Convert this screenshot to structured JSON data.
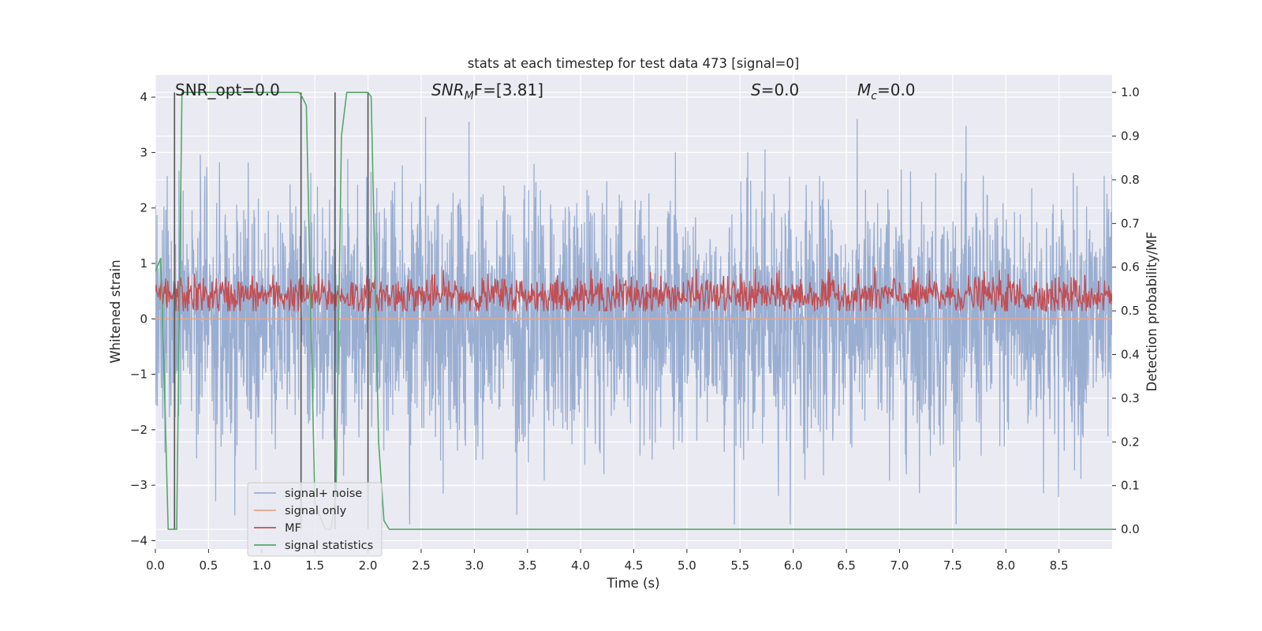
{
  "chart_data": {
    "type": "line",
    "title": "stats at each timestep for test data 473 [signal=0]",
    "xlabel": "Time (s)",
    "ylabel": "Whitened strain",
    "y2label": "Detection probability/MF",
    "xlim": [
      0.0,
      9.0
    ],
    "ylim": [
      -4.15,
      4.4
    ],
    "y2lim": [
      -0.045,
      1.04
    ],
    "x_ticks": [
      "0.0",
      "0.5",
      "1.0",
      "1.5",
      "2.0",
      "2.5",
      "3.0",
      "3.5",
      "4.0",
      "4.5",
      "5.0",
      "5.5",
      "6.0",
      "6.5",
      "7.0",
      "7.5",
      "8.0",
      "8.5"
    ],
    "y_ticks": [
      "4",
      "3",
      "2",
      "1",
      "0",
      "−1",
      "−2",
      "−3",
      "−4"
    ],
    "y2_ticks": [
      "1.0",
      "0.9",
      "0.8",
      "0.7",
      "0.6",
      "0.5",
      "0.4",
      "0.3",
      "0.2",
      "0.1",
      "0.0"
    ],
    "grid": true,
    "legend_position": "lower-left",
    "annotations": {
      "snr_opt": "SNR_opt=0.0",
      "snr_mf_prefix": "SNR",
      "snr_mf_sub": "M",
      "snr_mf_suffix": "F=[3.81]",
      "s_prefix": "S",
      "s_suffix": "=0.0",
      "mc_prefix": "M",
      "mc_sub": "c",
      "mc_suffix": "=0.0"
    },
    "series": [
      {
        "name": "signal+ noise",
        "color": "#9aaed1",
        "axis": "left",
        "duration_s": 9.0,
        "noise_sigma": 1.1,
        "approx_range": [
          -3.7,
          4.0
        ]
      },
      {
        "name": "signal only",
        "color": "#e8a58a",
        "axis": "left",
        "constant_value": 0.0
      },
      {
        "name": "MF",
        "color": "#c44e52",
        "axis": "right",
        "approx_mean": 0.535,
        "approx_range": [
          0.5,
          0.61
        ]
      },
      {
        "name": "signal statistics",
        "color": "#55a868",
        "axis": "right",
        "x": [
          0.0,
          0.05,
          0.08,
          0.12,
          0.18,
          0.2,
          0.25,
          0.3,
          0.5,
          1.0,
          1.3,
          1.35,
          1.38,
          1.42,
          1.5,
          1.6,
          1.65,
          1.7,
          1.75,
          1.8,
          2.0,
          2.03,
          2.1,
          2.15,
          2.2,
          2.5,
          9.0
        ],
        "values": [
          0.59,
          0.62,
          0.38,
          0.0,
          0.0,
          0.0,
          1.0,
          1.0,
          1.0,
          1.0,
          1.0,
          1.0,
          0.99,
          0.97,
          0.06,
          0.0,
          0.0,
          0.08,
          0.9,
          1.0,
          1.0,
          0.99,
          0.2,
          0.02,
          0.0,
          0.0,
          0.0
        ]
      }
    ],
    "vertical_lines": {
      "color": "#555555",
      "x": [
        0.18,
        1.37,
        1.69,
        2.0
      ]
    }
  }
}
